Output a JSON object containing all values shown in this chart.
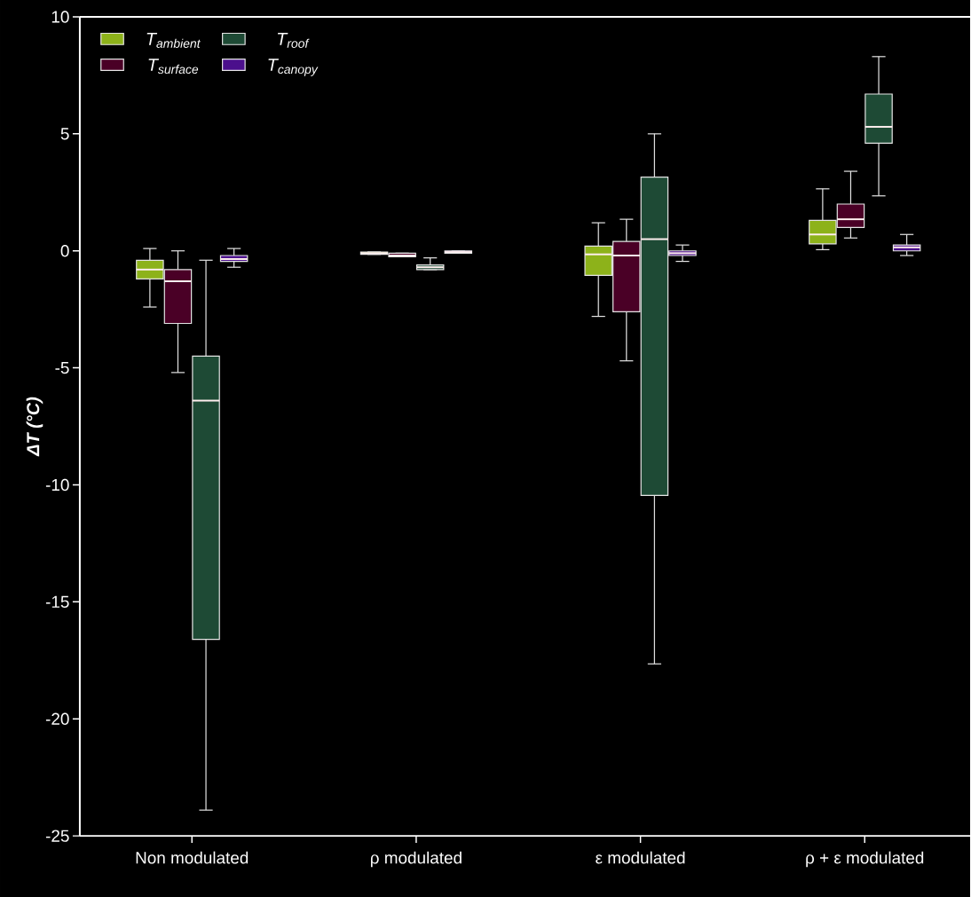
{
  "chart_data": {
    "type": "box",
    "ylabel": "ΔT  (°C)",
    "categories": [
      "Non modulated",
      "ρ modulated",
      "ε modulated",
      "ρ + ε modulated"
    ],
    "ylim": [
      -25,
      10
    ],
    "yticks": [
      -25,
      -20,
      -15,
      -10,
      -5,
      0,
      5,
      10
    ],
    "grid": false,
    "legend": "top left",
    "series": [
      {
        "name": "T$_{ambient}$",
        "color": "#8db21a",
        "boxes": [
          {
            "low": -2.4,
            "q1": -1.2,
            "median": -0.8,
            "q3": -0.4,
            "high": 0.1
          },
          {
            "low": -0.15,
            "q1": -0.15,
            "median": -0.1,
            "q3": -0.05,
            "high": -0.05
          },
          {
            "low": -2.8,
            "q1": -1.05,
            "median": -0.15,
            "q3": 0.2,
            "high": 1.2
          },
          {
            "low": 0.05,
            "q1": 0.3,
            "median": 0.7,
            "q3": 1.3,
            "high": 2.65
          }
        ]
      },
      {
        "name": "T$_{surface}$",
        "color": "#4a0026",
        "boxes": [
          {
            "low": -5.2,
            "q1": -3.1,
            "median": -1.3,
            "q3": -0.8,
            "high": 0.0
          },
          {
            "low": -0.25,
            "q1": -0.25,
            "median": -0.2,
            "q3": -0.1,
            "high": -0.1
          },
          {
            "low": -4.7,
            "q1": -2.6,
            "median": -0.2,
            "q3": 0.4,
            "high": 1.35
          },
          {
            "low": 0.55,
            "q1": 1.0,
            "median": 1.35,
            "q3": 2.0,
            "high": 3.4
          }
        ]
      },
      {
        "name": "T$_{roof}$",
        "color": "#1e4a35",
        "boxes": [
          {
            "low": -23.9,
            "q1": -16.6,
            "median": -6.4,
            "q3": -4.5,
            "high": -0.4
          },
          {
            "low": -0.8,
            "q1": -0.8,
            "median": -0.7,
            "q3": -0.6,
            "high": -0.3
          },
          {
            "low": -17.65,
            "q1": -10.45,
            "median": 0.5,
            "q3": 3.15,
            "high": 5.0
          },
          {
            "low": 2.35,
            "q1": 4.6,
            "median": 5.3,
            "q3": 6.7,
            "high": 8.3
          }
        ]
      },
      {
        "name": "T$_{canopy}$",
        "color": "#4b0f8c",
        "boxes": [
          {
            "low": -0.7,
            "q1": -0.45,
            "median": -0.35,
            "q3": -0.2,
            "high": 0.1
          },
          {
            "low": -0.1,
            "q1": -0.1,
            "median": -0.05,
            "q3": 0.0,
            "high": 0.0
          },
          {
            "low": -0.45,
            "q1": -0.2,
            "median": -0.1,
            "q3": 0.0,
            "high": 0.25
          },
          {
            "low": -0.2,
            "q1": 0.0,
            "median": 0.15,
            "q3": 0.25,
            "high": 0.7
          }
        ]
      }
    ]
  }
}
